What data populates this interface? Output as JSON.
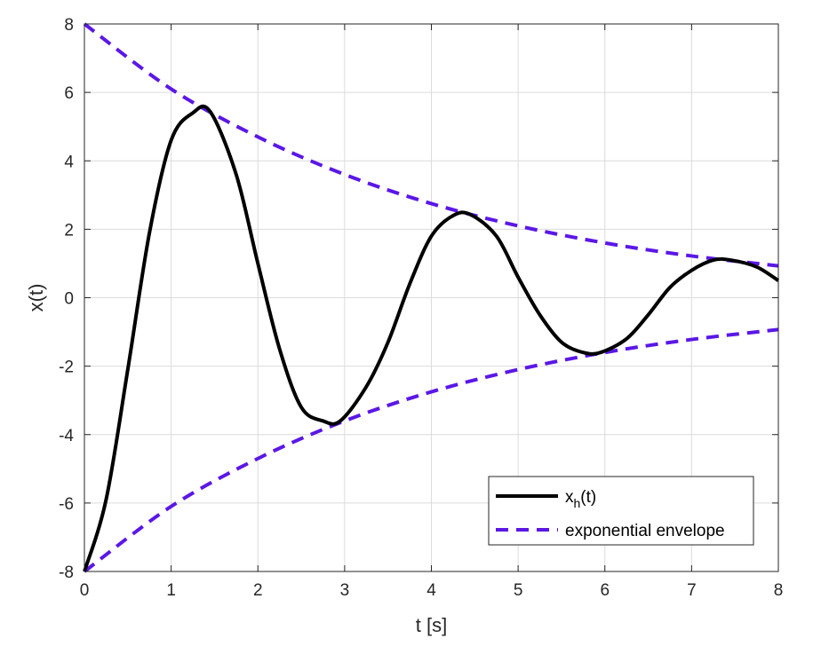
{
  "chart_data": {
    "type": "line",
    "title": "",
    "xlabel": "t [s]",
    "ylabel": "x(t)",
    "xlim": [
      0,
      8
    ],
    "ylim": [
      -8,
      8
    ],
    "xticks": [
      "0",
      "1",
      "2",
      "3",
      "4",
      "5",
      "6",
      "7",
      "8"
    ],
    "yticks": [
      "-8",
      "-6",
      "-4",
      "-2",
      "0",
      "2",
      "4",
      "6",
      "8"
    ],
    "grid": true,
    "legend_position": "bottom-right",
    "series": [
      {
        "name": "x_h(t)",
        "legend_main": "x",
        "legend_sub": "h",
        "legend_tail": "(t)",
        "style": "solid",
        "color": "#000000",
        "x": [
          0,
          0.25,
          0.5,
          0.75,
          1.0,
          1.25,
          1.45,
          1.75,
          2.0,
          2.25,
          2.5,
          2.75,
          2.95,
          3.25,
          3.5,
          3.75,
          4.0,
          4.25,
          4.45,
          4.75,
          5.0,
          5.25,
          5.5,
          5.75,
          5.95,
          6.25,
          6.5,
          6.75,
          7.0,
          7.25,
          7.45,
          7.75,
          8.0
        ],
        "values": [
          -8.0,
          -5.9,
          -2.1,
          1.9,
          4.6,
          5.4,
          5.44,
          3.6,
          1.0,
          -1.5,
          -3.2,
          -3.6,
          -3.6,
          -2.6,
          -1.3,
          0.4,
          1.8,
          2.4,
          2.43,
          1.8,
          0.6,
          -0.5,
          -1.3,
          -1.6,
          -1.6,
          -1.2,
          -0.5,
          0.3,
          0.8,
          1.1,
          1.1,
          0.9,
          0.5
        ]
      },
      {
        "name": "exponential envelope",
        "legend_label": "exponential envelope",
        "style": "dashed",
        "color": "#5b17e6",
        "x": [
          0,
          1,
          2,
          3,
          4,
          5,
          6,
          7,
          8
        ],
        "values": [
          8.0,
          6.1,
          4.7,
          3.6,
          2.75,
          2.1,
          1.6,
          1.22,
          0.93
        ]
      },
      {
        "name": "exponential envelope (lower)",
        "style": "dashed",
        "color": "#5b17e6",
        "in_legend": false,
        "x": [
          0,
          1,
          2,
          3,
          4,
          5,
          6,
          7,
          8
        ],
        "values": [
          -8.0,
          -6.1,
          -4.7,
          -3.6,
          -2.75,
          -2.1,
          -1.6,
          -1.22,
          -0.93
        ]
      }
    ]
  }
}
